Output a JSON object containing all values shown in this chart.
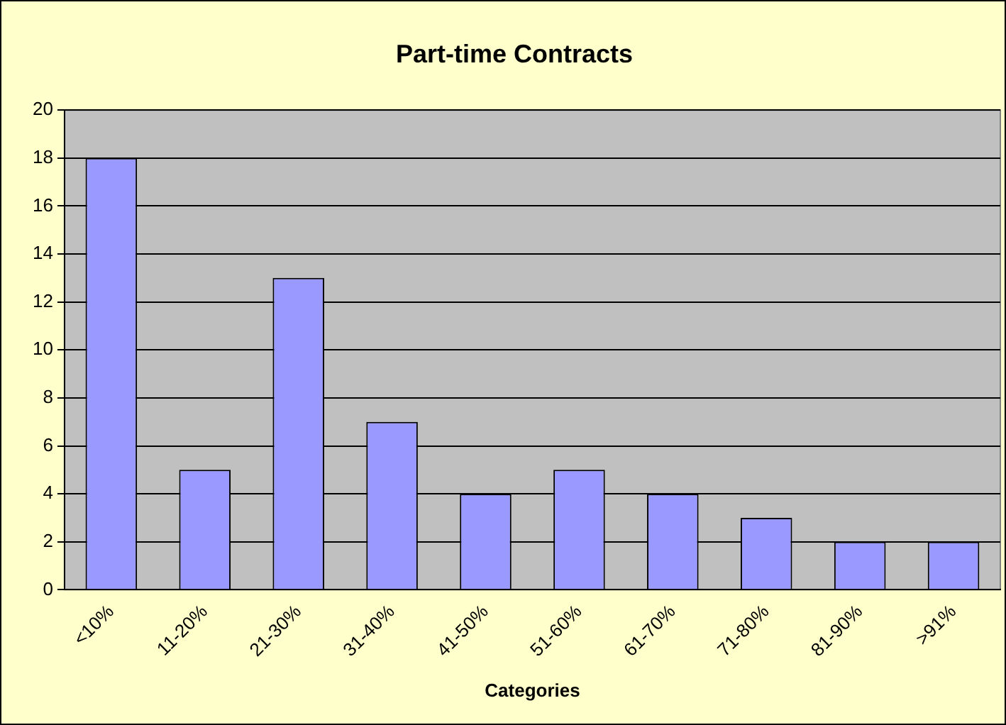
{
  "chart_data": {
    "type": "bar",
    "title": "Part-time Contracts",
    "xlabel": "Categories",
    "categories": [
      "<10%",
      "11-20%",
      "21-30%",
      "31-40%",
      "41-50%",
      "51-60%",
      "61-70%",
      "71-80%",
      "81-90%",
      ">91%"
    ],
    "values": [
      18,
      5,
      13,
      7,
      4,
      5,
      4,
      3,
      2,
      2
    ],
    "color": "#9999ff",
    "ylim": [
      0,
      20
    ],
    "yticks": [
      0,
      2,
      4,
      6,
      8,
      10,
      12,
      14,
      16,
      18,
      20
    ],
    "grid": "y",
    "legend": false
  }
}
